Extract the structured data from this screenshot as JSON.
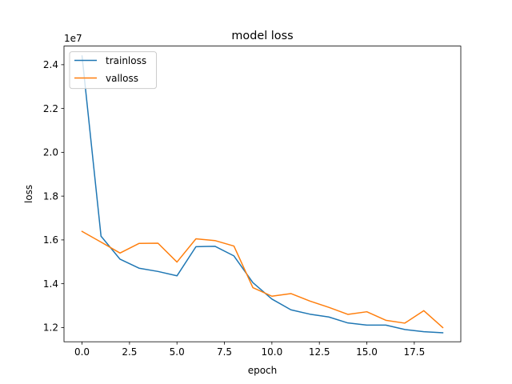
{
  "chart_data": {
    "type": "line",
    "title": "model loss",
    "xlabel": "epoch",
    "ylabel": "loss",
    "y_offset_label": "1e7",
    "xlim": [
      -0.95,
      19.95
    ],
    "ylim": [
      1.135,
      2.485
    ],
    "xticks": [
      0,
      2.5,
      5,
      7.5,
      10,
      12.5,
      15,
      17.5
    ],
    "xtick_labels": [
      "0.0",
      "2.5",
      "5.0",
      "7.5",
      "10.0",
      "12.5",
      "15.0",
      "17.5"
    ],
    "yticks": [
      1.2,
      1.4,
      1.6,
      1.8,
      2.0,
      2.2,
      2.4
    ],
    "ytick_labels": [
      "1.2",
      "1.4",
      "1.6",
      "1.8",
      "2.0",
      "2.2",
      "2.4"
    ],
    "grid": false,
    "legend_position": "top-left",
    "x": [
      0,
      1,
      2,
      3,
      4,
      5,
      6,
      7,
      8,
      9,
      10,
      11,
      12,
      13,
      14,
      15,
      16,
      17,
      18,
      19
    ],
    "series": [
      {
        "name": "trainloss",
        "color": "#1f77b4",
        "values": [
          2.44,
          1.617,
          1.512,
          1.471,
          1.456,
          1.436,
          1.569,
          1.571,
          1.527,
          1.405,
          1.33,
          1.281,
          1.261,
          1.248,
          1.221,
          1.211,
          1.211,
          1.191,
          1.181,
          1.176
        ]
      },
      {
        "name": "valloss",
        "color": "#ff7f0e",
        "values": [
          1.639,
          1.59,
          1.54,
          1.584,
          1.585,
          1.499,
          1.605,
          1.597,
          1.572,
          1.382,
          1.343,
          1.355,
          1.321,
          1.292,
          1.26,
          1.272,
          1.233,
          1.22,
          1.277,
          1.2
        ]
      }
    ]
  }
}
